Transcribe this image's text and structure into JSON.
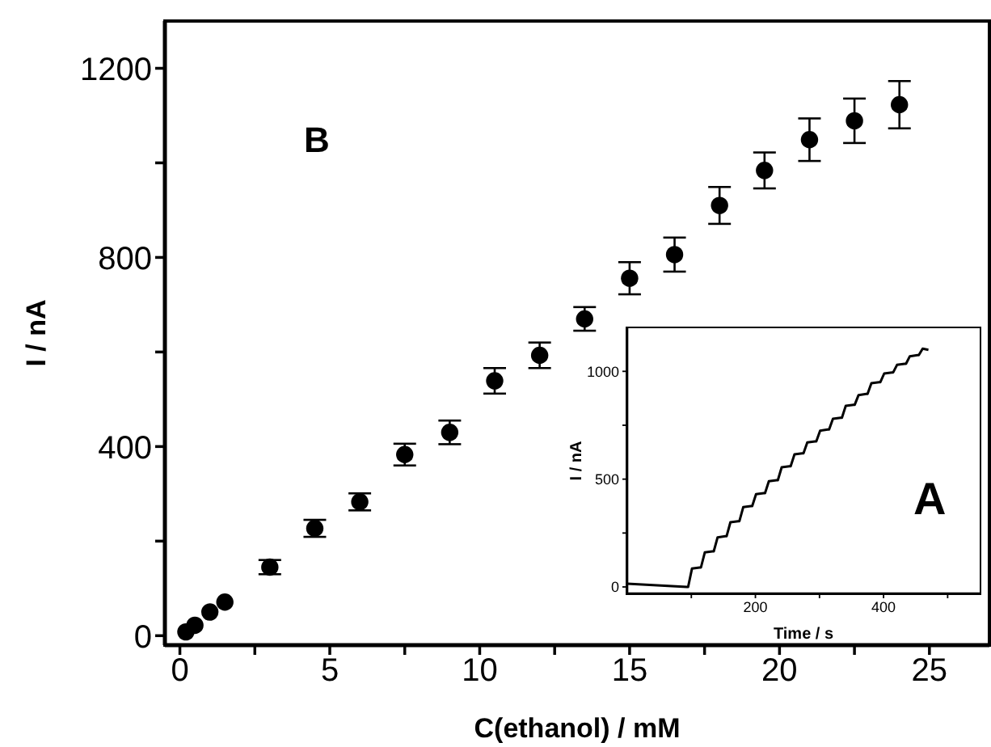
{
  "chart_data": [
    {
      "type": "scatter",
      "xlabel": "C(ethanol) / mM",
      "ylabel": "I / nA",
      "annotations": [
        "B"
      ],
      "x": [
        0.2,
        0.5,
        1,
        1.5,
        3,
        4.5,
        6,
        7.5,
        9,
        10.5,
        12,
        13.5,
        15,
        16.5,
        18,
        19.5,
        21,
        22.5,
        24
      ],
      "series": [
        {
          "color": "#000000",
          "values": [
            8,
            22,
            50,
            71,
            145,
            227,
            283,
            383,
            430,
            539,
            593,
            670,
            756,
            806,
            910,
            984,
            1049,
            1089,
            1123
          ],
          "errors": [
            null,
            null,
            null,
            null,
            15,
            18,
            18,
            23,
            25,
            27,
            27,
            25,
            34,
            36,
            39,
            38,
            45,
            47,
            50
          ]
        }
      ],
      "xlim": [
        -0.5,
        27
      ],
      "xticks": [
        0,
        {
          "value": 2.5,
          "label": null
        },
        5,
        {
          "value": 7.5,
          "label": null
        },
        10,
        {
          "value": 12.5,
          "label": null
        },
        15,
        {
          "value": 17.5,
          "label": null
        },
        20,
        {
          "value": 22.5,
          "label": null
        },
        25
      ],
      "ylim": [
        -20,
        1300
      ],
      "yticks": [
        0,
        {
          "value": 200,
          "label": null
        },
        400,
        {
          "value": 600,
          "label": null
        },
        800,
        {
          "value": 1000,
          "label": null
        },
        1200
      ],
      "marker": "circle",
      "grid": false,
      "legend": false
    },
    {
      "type": "line",
      "xlabel": "Time / s",
      "ylabel": "I / nA",
      "annotations": [
        "A"
      ],
      "x": [
        0,
        93,
        95,
        101,
        113,
        115,
        121,
        133,
        135,
        141,
        153,
        155,
        161,
        173,
        175,
        181,
        193,
        195,
        201,
        213,
        215,
        221,
        233,
        235,
        241,
        253,
        255,
        261,
        273,
        275,
        281,
        293,
        295,
        301,
        313,
        315,
        321,
        333,
        335,
        341,
        353,
        355,
        361,
        373,
        375,
        381,
        393,
        395,
        401,
        413,
        415,
        421,
        433,
        435,
        441,
        453,
        455,
        461,
        470
      ],
      "series": [
        {
          "color": "#000000",
          "values": [
            15,
            0,
            0,
            85,
            90,
            90,
            160,
            165,
            165,
            230,
            235,
            235,
            300,
            305,
            305,
            370,
            375,
            375,
            430,
            435,
            435,
            490,
            495,
            495,
            555,
            560,
            560,
            615,
            620,
            620,
            670,
            675,
            675,
            725,
            730,
            730,
            780,
            785,
            785,
            840,
            845,
            845,
            890,
            895,
            895,
            945,
            950,
            950,
            990,
            995,
            995,
            1030,
            1035,
            1035,
            1070,
            1075,
            1075,
            1105,
            1100
          ]
        }
      ],
      "xlim": [
        0,
        550
      ],
      "xticks": [
        {
          "value": 100,
          "label": null
        },
        200,
        {
          "value": 300,
          "label": null
        },
        400,
        {
          "value": 500,
          "label": null
        }
      ],
      "ylim": [
        -30,
        1200
      ],
      "yticks": [
        0,
        {
          "value": 250,
          "label": null
        },
        500,
        {
          "value": 750,
          "label": null
        },
        1000
      ],
      "marker": "none",
      "line_style": "solid",
      "grid": false,
      "legend": false
    }
  ]
}
